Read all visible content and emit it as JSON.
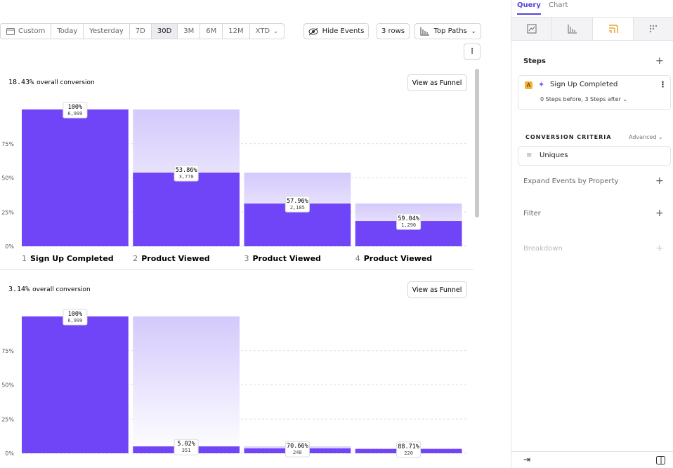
{
  "toolbar": {
    "date_ranges": [
      "Custom",
      "Today",
      "Yesterday",
      "7D",
      "30D",
      "3M",
      "6M",
      "12M",
      "XTD"
    ],
    "active_range": "30D",
    "hide_events": "Hide Events",
    "rows": "3 rows",
    "paths": "Top Paths"
  },
  "funnels": [
    {
      "type": "bar",
      "overall_conversion": "18.43%",
      "overall_label": "overall conversion",
      "button": "View as Funnel",
      "ylim": [
        0,
        100
      ],
      "yticks": [
        {
          "value": 0,
          "label": "0%"
        },
        {
          "value": 25,
          "label": "25%"
        },
        {
          "value": 50,
          "label": "50%"
        },
        {
          "value": 75,
          "label": "75%"
        }
      ],
      "values": [
        100,
        53.86,
        31.22,
        18.43
      ],
      "step_conversion": [
        "100%",
        "53.86%",
        "57.96%",
        "59.04%"
      ],
      "counts": [
        "6,999",
        "3,770",
        "2,185",
        "1,290"
      ],
      "steps": [
        {
          "number": 1,
          "name": "Sign Up Completed"
        },
        {
          "number": 2,
          "name": "Product Viewed"
        },
        {
          "number": 3,
          "name": "Product Viewed"
        },
        {
          "number": 4,
          "name": "Product Viewed"
        }
      ]
    },
    {
      "type": "bar",
      "overall_conversion": "3.14%",
      "overall_label": "overall conversion",
      "button": "View as Funnel",
      "ylim": [
        0,
        100
      ],
      "yticks": [
        {
          "value": 0,
          "label": "0%"
        },
        {
          "value": 25,
          "label": "25%"
        },
        {
          "value": 50,
          "label": "50%"
        },
        {
          "value": 75,
          "label": "75%"
        }
      ],
      "values": [
        100,
        5.02,
        3.55,
        3.14
      ],
      "step_conversion": [
        "100%",
        "5.02%",
        "70.66%",
        "88.71%"
      ],
      "counts": [
        "6,999",
        "351",
        "248",
        "220"
      ]
    }
  ],
  "panel": {
    "tabs": [
      "Query",
      "Chart"
    ],
    "steps_title": "Steps",
    "step_badge": "A",
    "step_event": "Sign Up Completed",
    "step_window": "0 Steps before, 3 Steps after",
    "criteria_title": "CONVERSION CRITERIA",
    "criteria_mode": "Advanced",
    "criteria_value": "Uniques",
    "expand": "Expand Events by Property",
    "filter": "Filter",
    "breakdown": "Breakdown"
  }
}
